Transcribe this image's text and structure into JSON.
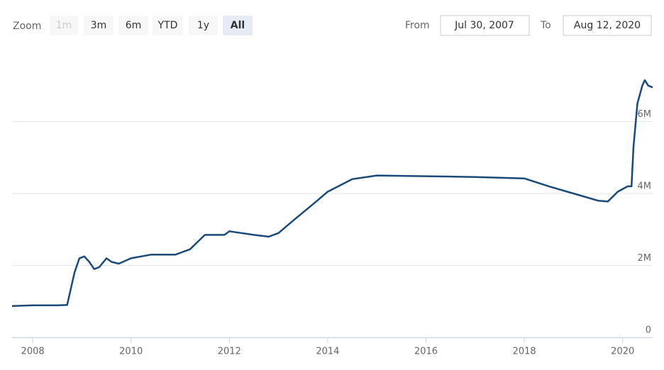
{
  "chart_data": {
    "type": "line",
    "zoom_label": "Zoom",
    "zoom_buttons": [
      "1m",
      "3m",
      "6m",
      "YTD",
      "1y",
      "All"
    ],
    "from_label": "From",
    "from_date": "Jul 30, 2007",
    "to_label": "To",
    "to_date": "Aug 12, 2020",
    "x": [
      2007.58,
      2008.0,
      2008.5,
      2008.7,
      2008.75,
      2008.85,
      2008.95,
      2009.05,
      2009.15,
      2009.25,
      2009.35,
      2009.5,
      2009.6,
      2009.75,
      2010.0,
      2010.4,
      2010.9,
      2011.2,
      2011.5,
      2011.9,
      2012.0,
      2012.5,
      2012.8,
      2013.0,
      2013.3,
      2013.7,
      2014.0,
      2014.5,
      2015.0,
      2016.0,
      2017.0,
      2018.0,
      2018.5,
      2019.0,
      2019.5,
      2019.7,
      2019.9,
      2020.1,
      2020.18,
      2020.22,
      2020.3,
      2020.4,
      2020.45,
      2020.52,
      2020.61
    ],
    "series": [
      {
        "color": "#1a4a7a",
        "values": [
          870000,
          890000,
          890000,
          900000,
          1200000,
          1800000,
          2200000,
          2250000,
          2100000,
          1900000,
          1950000,
          2200000,
          2100000,
          2050000,
          2200000,
          2300000,
          2300000,
          2450000,
          2850000,
          2850000,
          2950000,
          2850000,
          2800000,
          2900000,
          3250000,
          3700000,
          4050000,
          4400000,
          4500000,
          4480000,
          4460000,
          4420000,
          4200000,
          4000000,
          3800000,
          3780000,
          4050000,
          4200000,
          4200000,
          5300000,
          6500000,
          7000000,
          7150000,
          7000000,
          6950000
        ]
      }
    ],
    "xlim": [
      2007.58,
      2020.61
    ],
    "xticks": [
      2008,
      2010,
      2012,
      2014,
      2016,
      2018,
      2020
    ],
    "ylim": [
      0,
      8000000
    ],
    "yticks": [
      0,
      {
        "value": 2000000,
        "label": "2M"
      },
      {
        "value": 4000000,
        "label": "4M"
      },
      {
        "value": 6000000,
        "label": "6M"
      }
    ],
    "grid": true
  }
}
